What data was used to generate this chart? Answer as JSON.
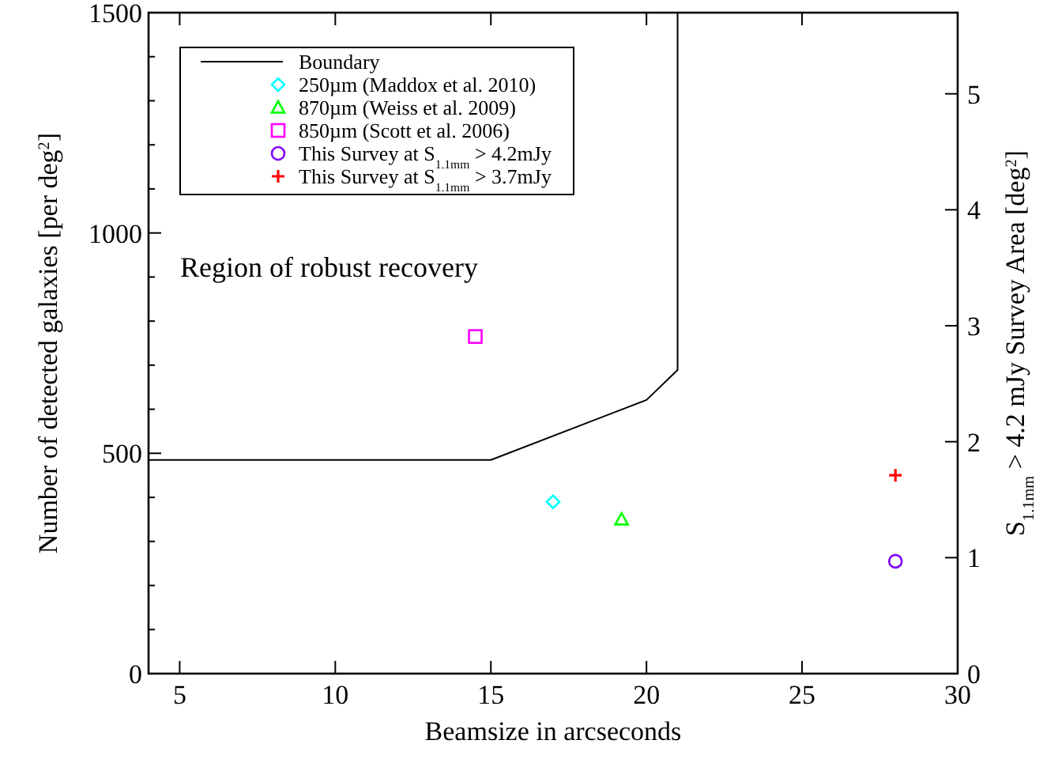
{
  "chart_data": {
    "type": "scatter",
    "xlabel": "Beamsize in arcseconds",
    "ylabel": "Number of detected galaxies [per deg$^{2}$]",
    "y2label": "S$_{1.1mm}$ > 4.2 mJy Survey Area [deg$^{2}$]",
    "xlim": [
      4,
      30
    ],
    "xticks": [
      5,
      10,
      15,
      20,
      25,
      30
    ],
    "ylim": [
      0,
      1500
    ],
    "yticks": [
      0,
      {
        "value": 100,
        "label": null
      },
      {
        "value": 200,
        "label": null
      },
      {
        "value": 300,
        "label": null
      },
      {
        "value": 400,
        "label": null
      },
      500,
      {
        "value": 600,
        "label": null
      },
      {
        "value": 700,
        "label": null
      },
      {
        "value": 800,
        "label": null
      },
      {
        "value": 900,
        "label": null
      },
      1000,
      {
        "value": 1100,
        "label": null
      },
      {
        "value": 1200,
        "label": null
      },
      {
        "value": 1300,
        "label": null
      },
      {
        "value": 1400,
        "label": null
      },
      1500
    ],
    "y2lim": [
      0,
      5.7
    ],
    "y2ticks": [
      0,
      1,
      2,
      3,
      4,
      5
    ],
    "legend": "top left",
    "grid": false,
    "annotations": [
      "Region of robust recovery"
    ],
    "series": [
      {
        "name": "Boundary",
        "type": "line",
        "color": "#000000",
        "marker": "none",
        "x": [
          4,
          15,
          20,
          21,
          21
        ],
        "values": [
          485,
          485,
          621,
          689,
          1500
        ]
      },
      {
        "name": "250µm (Maddox et al. 2010)",
        "color": "#00ffff",
        "marker": "diamond",
        "x": [
          17.0
        ],
        "values": [
          390
        ]
      },
      {
        "name": "870µm (Weiss et al. 2009)",
        "color": "#00ff00",
        "marker": "triangle",
        "x": [
          19.2
        ],
        "values": [
          350
        ]
      },
      {
        "name": "850µm (Scott et al. 2006)",
        "color": "#ff00ff",
        "marker": "square",
        "x": [
          14.5
        ],
        "values": [
          765
        ]
      },
      {
        "name": "This Survey at S$_{1.1mm}$ > 4.2mJy",
        "color": "#7f00ff",
        "marker": "circle",
        "x": [
          28.0
        ],
        "values": [
          255
        ]
      },
      {
        "name": "This Survey at S$_{1.1mm}$ > 3.7mJy",
        "color": "#ff0000",
        "marker": "cross",
        "x": [
          28.0
        ],
        "values": [
          450
        ]
      }
    ]
  }
}
